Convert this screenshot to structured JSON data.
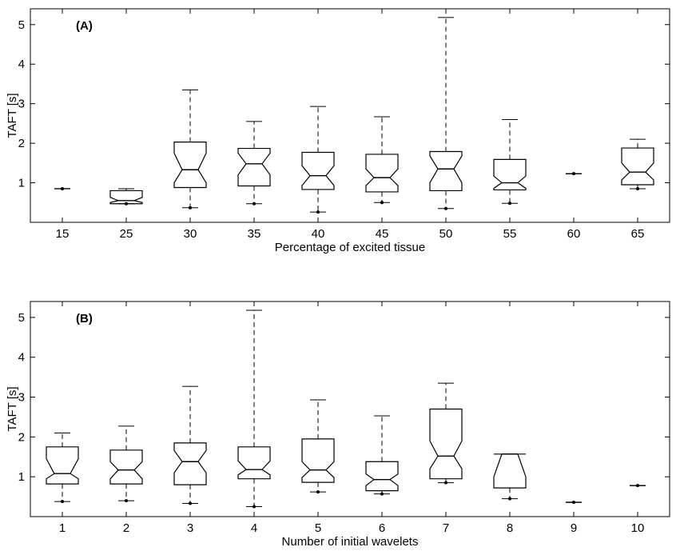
{
  "chart_data": [
    {
      "type": "box",
      "panel_label": "(A)",
      "xlabel": "Percentage of excited tissue",
      "ylabel": "TAFT [s]",
      "ylim": [
        0,
        5.4
      ],
      "yticks": [
        1,
        2,
        3,
        4,
        5
      ],
      "grid": false,
      "notched": true,
      "categories": [
        "15",
        "25",
        "30",
        "35",
        "40",
        "45",
        "50",
        "55",
        "60",
        "65"
      ],
      "boxes": [
        {
          "min": 0.85,
          "q1": 0.85,
          "median": 0.85,
          "q3": 0.85,
          "max": 0.85,
          "nlo": 0.85,
          "nhi": 0.85
        },
        {
          "min": 0.47,
          "q1": 0.47,
          "median": 0.55,
          "q3": 0.8,
          "max": 0.85,
          "nlo": 0.5,
          "nhi": 0.63
        },
        {
          "min": 0.37,
          "q1": 0.88,
          "median": 1.33,
          "q3": 2.03,
          "max": 3.35,
          "nlo": 1.0,
          "nhi": 1.75
        },
        {
          "min": 0.47,
          "q1": 0.92,
          "median": 1.48,
          "q3": 1.87,
          "max": 2.55,
          "nlo": 1.2,
          "nhi": 1.75
        },
        {
          "min": 0.26,
          "q1": 0.83,
          "median": 1.18,
          "q3": 1.77,
          "max": 2.93,
          "nlo": 0.93,
          "nhi": 1.43
        },
        {
          "min": 0.5,
          "q1": 0.77,
          "median": 1.13,
          "q3": 1.72,
          "max": 2.67,
          "nlo": 0.93,
          "nhi": 1.35
        },
        {
          "min": 0.35,
          "q1": 0.8,
          "median": 1.35,
          "q3": 1.79,
          "max": 5.18,
          "nlo": 1.0,
          "nhi": 1.68
        },
        {
          "min": 0.48,
          "q1": 0.82,
          "median": 1.0,
          "q3": 1.59,
          "max": 2.6,
          "nlo": 0.86,
          "nhi": 1.17
        },
        {
          "min": 1.23,
          "q1": 1.23,
          "median": 1.23,
          "q3": 1.23,
          "max": 1.23,
          "nlo": 1.23,
          "nhi": 1.23
        },
        {
          "min": 0.85,
          "q1": 0.95,
          "median": 1.27,
          "q3": 1.88,
          "max": 2.1,
          "nlo": 1.07,
          "nhi": 1.5
        }
      ]
    },
    {
      "type": "box",
      "panel_label": "(B)",
      "xlabel": "Number of initial wavelets",
      "ylabel": "TAFT [s]",
      "ylim": [
        0,
        5.4
      ],
      "yticks": [
        1,
        2,
        3,
        4,
        5
      ],
      "grid": false,
      "notched": true,
      "categories": [
        "1",
        "2",
        "3",
        "4",
        "5",
        "6",
        "7",
        "8",
        "9",
        "10"
      ],
      "boxes": [
        {
          "min": 0.38,
          "q1": 0.82,
          "median": 1.08,
          "q3": 1.75,
          "max": 2.1,
          "nlo": 0.95,
          "nhi": 1.45
        },
        {
          "min": 0.4,
          "q1": 0.82,
          "median": 1.17,
          "q3": 1.67,
          "max": 2.27,
          "nlo": 0.95,
          "nhi": 1.38
        },
        {
          "min": 0.33,
          "q1": 0.8,
          "median": 1.38,
          "q3": 1.85,
          "max": 3.27,
          "nlo": 1.1,
          "nhi": 1.66
        },
        {
          "min": 0.25,
          "q1": 0.95,
          "median": 1.18,
          "q3": 1.75,
          "max": 5.18,
          "nlo": 1.05,
          "nhi": 1.4
        },
        {
          "min": 0.62,
          "q1": 0.86,
          "median": 1.17,
          "q3": 1.95,
          "max": 2.93,
          "nlo": 0.98,
          "nhi": 1.38
        },
        {
          "min": 0.57,
          "q1": 0.65,
          "median": 0.93,
          "q3": 1.38,
          "max": 2.53,
          "nlo": 0.78,
          "nhi": 1.07
        },
        {
          "min": 0.85,
          "q1": 0.95,
          "median": 1.52,
          "q3": 2.7,
          "max": 3.35,
          "nlo": 1.2,
          "nhi": 1.9
        },
        {
          "min": 0.45,
          "q1": 0.72,
          "median": 1.57,
          "q3": 1.57,
          "max": 1.57,
          "nlo": 1.0,
          "nhi": 1.57
        },
        {
          "min": 0.36,
          "q1": 0.36,
          "median": 0.36,
          "q3": 0.36,
          "max": 0.36,
          "nlo": 0.36,
          "nhi": 0.36
        },
        {
          "min": 0.78,
          "q1": 0.78,
          "median": 0.78,
          "q3": 0.78,
          "max": 0.78,
          "nlo": 0.78,
          "nhi": 0.78
        }
      ]
    }
  ]
}
